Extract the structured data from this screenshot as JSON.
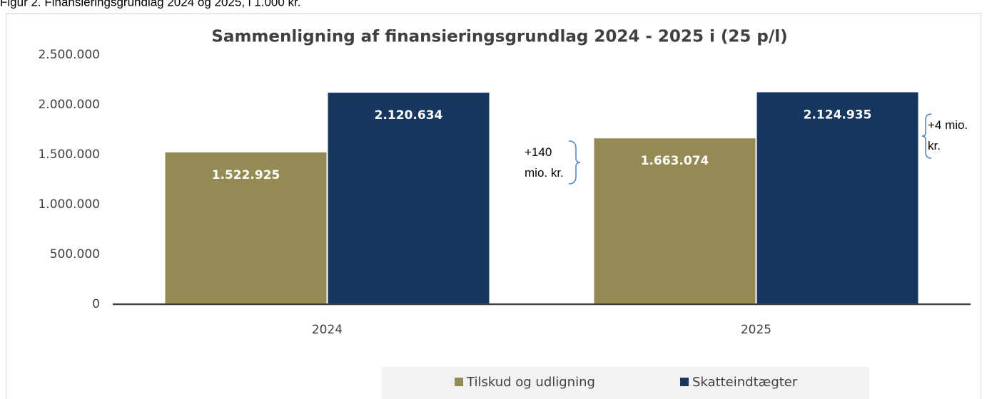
{
  "caption": "Figur 2. Finansieringsgrundlag 2024 og 2025, i 1.000 kr.",
  "chart_data": {
    "type": "bar",
    "title": "Sammenligning af finansieringsgrundlag 2024 - 2025 i (25 p/l)",
    "categories": [
      "2024",
      "2025"
    ],
    "series": [
      {
        "name": "Tilskud og udligning",
        "color": "#948a54",
        "values": [
          1522925,
          1663074
        ],
        "value_labels": [
          "1.522.925",
          "1.663.074"
        ]
      },
      {
        "name": "Skatteindtægter",
        "color": "#17375e",
        "values": [
          2120634,
          2124935
        ],
        "value_labels": [
          "2.120.634",
          "2.124.935"
        ]
      }
    ],
    "ylim": [
      0,
      2500000
    ],
    "yticks": [
      0,
      {
        "value": 500000,
        "label": "500.000"
      },
      {
        "value": 1000000,
        "label": "1.000.000"
      },
      {
        "value": 1500000,
        "label": "1.500.000"
      },
      {
        "value": 2000000,
        "label": "2.000.000"
      },
      {
        "value": 2500000,
        "label": "2.500.000"
      }
    ],
    "grid": false,
    "legend": "bottom",
    "annotations": [
      "+140 mio. kr.",
      "+4 mio. kr."
    ]
  }
}
